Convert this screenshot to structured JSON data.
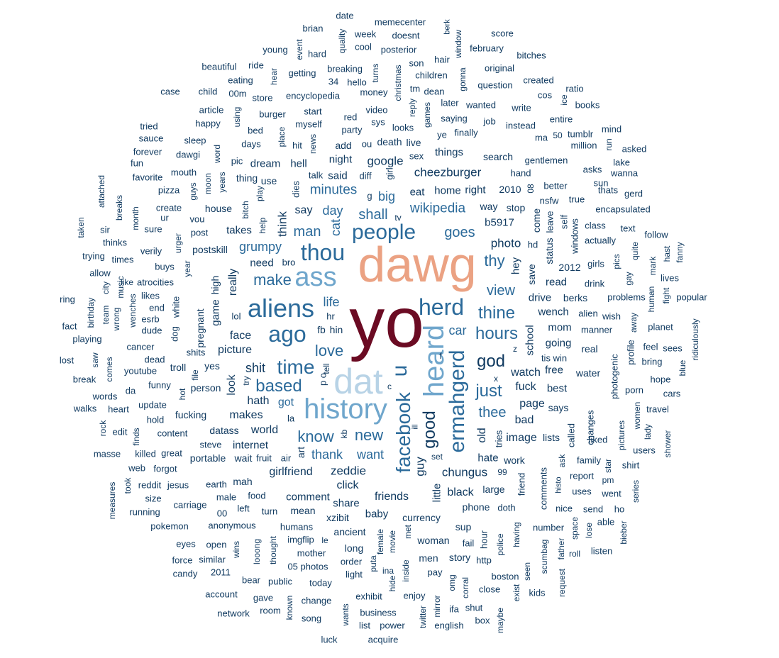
{
  "palette": {
    "dark": "#103a60",
    "mid": "#2b6a9a",
    "light": "#6fa6cc",
    "pale": "#b8d3e6",
    "peach": "#eba283",
    "maroon": "#6b0b23"
  },
  "words": [
    "yo",
    "dawg",
    "dat",
    "history",
    "heard",
    "aliens",
    "ass",
    "herd",
    "thou",
    "ago",
    "u",
    "ermahgerd",
    "people",
    "facebook",
    "time",
    "based",
    "hours",
    "good",
    "just",
    "god",
    "thine",
    "love",
    "thee",
    "know",
    "new",
    "view",
    "thy",
    "make",
    "shit",
    "cat",
    "wikipedia",
    "grumpy",
    "cheezburger",
    "minutes",
    "day",
    "shall",
    "big",
    "goes",
    "google",
    "man",
    "thank",
    "want",
    "guy",
    "zeddie",
    "chungus",
    "click",
    "friends",
    "girlfriend",
    "picture",
    "face",
    "look",
    "hath",
    "got",
    "makes",
    "world",
    "internet",
    "think",
    "really",
    "say",
    "life",
    "car",
    "old",
    "image",
    "bad",
    "page",
    "black",
    "little",
    "watch",
    "fuck",
    "photo",
    "hey",
    "save",
    "drive",
    "read",
    "mom",
    "school",
    "going",
    "free",
    "says",
    "best",
    "real",
    "water",
    "wench",
    "alien",
    "wish",
    "b5917",
    "way",
    "stop",
    "come",
    "hd",
    "status",
    "2012",
    "drink",
    "berks",
    "problems",
    "manner",
    "fb",
    "hr",
    "hin",
    "f",
    "game",
    "high",
    "pregnant",
    "dog",
    "white",
    "troll",
    "yes",
    "person",
    "fucking",
    "datass",
    "steve",
    "portable",
    "wait",
    "fruit",
    "air",
    "art",
    "kb",
    "set",
    "ill",
    "hate",
    "work",
    "tries",
    "lists",
    "called",
    "changes",
    "liked",
    "photogenic",
    "profile",
    "share",
    "baby",
    "currency",
    "comment",
    "mean",
    "turn",
    "left",
    "food",
    "mah",
    "earth",
    "male",
    "humans",
    "ancient",
    "xzibit",
    "female",
    "puta",
    "movie",
    "met",
    "woman",
    "sup",
    "fail",
    "hour",
    "phone",
    "doth",
    "large",
    "99",
    "friend",
    "comments",
    "nice",
    "ask",
    "histo",
    "report",
    "family",
    "star",
    "pm",
    "went",
    "uses",
    "send",
    "ho",
    "able",
    "number",
    "space",
    "lose",
    "bieber",
    "listen",
    "roll",
    "father",
    "scumbag",
    "having",
    "police",
    "takes",
    "house",
    "postskill",
    "need",
    "bro",
    "lol",
    "hell",
    "dream",
    "use",
    "thing",
    "said",
    "talk",
    "night",
    "add",
    "ou",
    "death",
    "live",
    "sex",
    "things",
    "search",
    "eat",
    "home",
    "right",
    "2010",
    "08",
    "better",
    "nsfw",
    "true",
    "leave",
    "self",
    "windows",
    "class",
    "actually",
    "sun",
    "asks",
    "thats",
    "gerd",
    "encapsulated",
    "text",
    "gay",
    "pics",
    "girls",
    "mark",
    "human",
    "hast",
    "lives",
    "fight",
    "popular",
    "fanny",
    "quite",
    "follow",
    "ridiculously",
    "blue",
    "sees",
    "feel",
    "bring",
    "hope",
    "planet",
    "away",
    "cars",
    "travel",
    "women",
    "porn",
    "lady",
    "shower",
    "users",
    "shirt",
    "series",
    "pictures",
    "date",
    "memecenter",
    "berk",
    "brian",
    "quality",
    "week",
    "doesnt",
    "window",
    "score",
    "young",
    "event",
    "hard",
    "cool",
    "posterior",
    "february",
    "hair",
    "ride",
    "beautiful",
    "hear",
    "getting",
    "breaking",
    "turns",
    "son",
    "children",
    "gonna",
    "original",
    "bitches",
    "eating",
    "34",
    "hello",
    "christmas",
    "tm",
    "created",
    "case",
    "child",
    "00m",
    "store",
    "encyclopedia",
    "money",
    "dean",
    "question",
    "ratio",
    "cos",
    "ice",
    "books",
    "reply",
    "article",
    "using",
    "burger",
    "start",
    "video",
    "later",
    "wanted",
    "write",
    "tried",
    "happy",
    "myself",
    "red",
    "sys",
    "saying",
    "job",
    "instead",
    "entire",
    "mind",
    "bed",
    "party",
    "looks",
    "games",
    "ye",
    "finally",
    "ma",
    "50",
    "tumblr",
    "sauce",
    "sleep",
    "place",
    "days",
    "hit",
    "news",
    "million",
    "run",
    "asked",
    "forever",
    "dawgi",
    "word",
    "pic",
    "dies",
    "diff",
    "girl",
    "gentlemen",
    "fun",
    "lake",
    "wanna",
    "hand",
    "favorite",
    "mouth",
    "guys",
    "moon",
    "years",
    "attached",
    "pizza",
    "g",
    "create",
    "bitch",
    "play",
    "breaks",
    "month",
    "ur",
    "vou",
    "post",
    "help",
    "tv",
    "taken",
    "sir",
    "sure",
    "urger",
    "thinks",
    "verily",
    "trying",
    "times",
    "year",
    "buys",
    "allow",
    "atrocities",
    "like",
    "likes",
    "esrb",
    "end",
    "city",
    "music",
    "wenches",
    "team",
    "ring",
    "birthday",
    "wrong",
    "dude",
    "fact",
    "cancer",
    "playing",
    "shits",
    "lost",
    "saw",
    "dead",
    "comes",
    "youtube",
    "try",
    "tell",
    "p o",
    "c",
    "x",
    "z",
    "tis win",
    "break",
    "funny",
    "words",
    "da",
    "hot",
    "walks",
    "heart",
    "update",
    "file",
    "rock",
    "edit",
    "finds",
    "hold",
    "content",
    "great",
    "la",
    "masse",
    "killed",
    "web",
    "forgot",
    "jesus",
    "took",
    "reddit",
    "size",
    "carriage",
    "measures",
    "running",
    "00",
    "anonymous",
    "pokemon",
    "eyes",
    "open",
    "wins",
    "looong",
    "thought",
    "force",
    "similar",
    "2011",
    "candy",
    "05 photos",
    "mother",
    "imgflip",
    "le",
    "order",
    "light",
    "long",
    "ina",
    "hide",
    "inside",
    "enjoy",
    "pay",
    "men",
    "story",
    "http",
    "omg",
    "corral",
    "boston",
    "seen",
    "exist",
    "kids",
    "close",
    "request",
    "account",
    "bear",
    "public",
    "today",
    "network",
    "gave",
    "room",
    "change",
    "exhibit",
    "known",
    "song",
    "wants",
    "business",
    "list",
    "power",
    "twitter",
    "mirror",
    "ifa",
    "shut",
    "english",
    "box",
    "maybe",
    "luck",
    "acquire"
  ]
}
